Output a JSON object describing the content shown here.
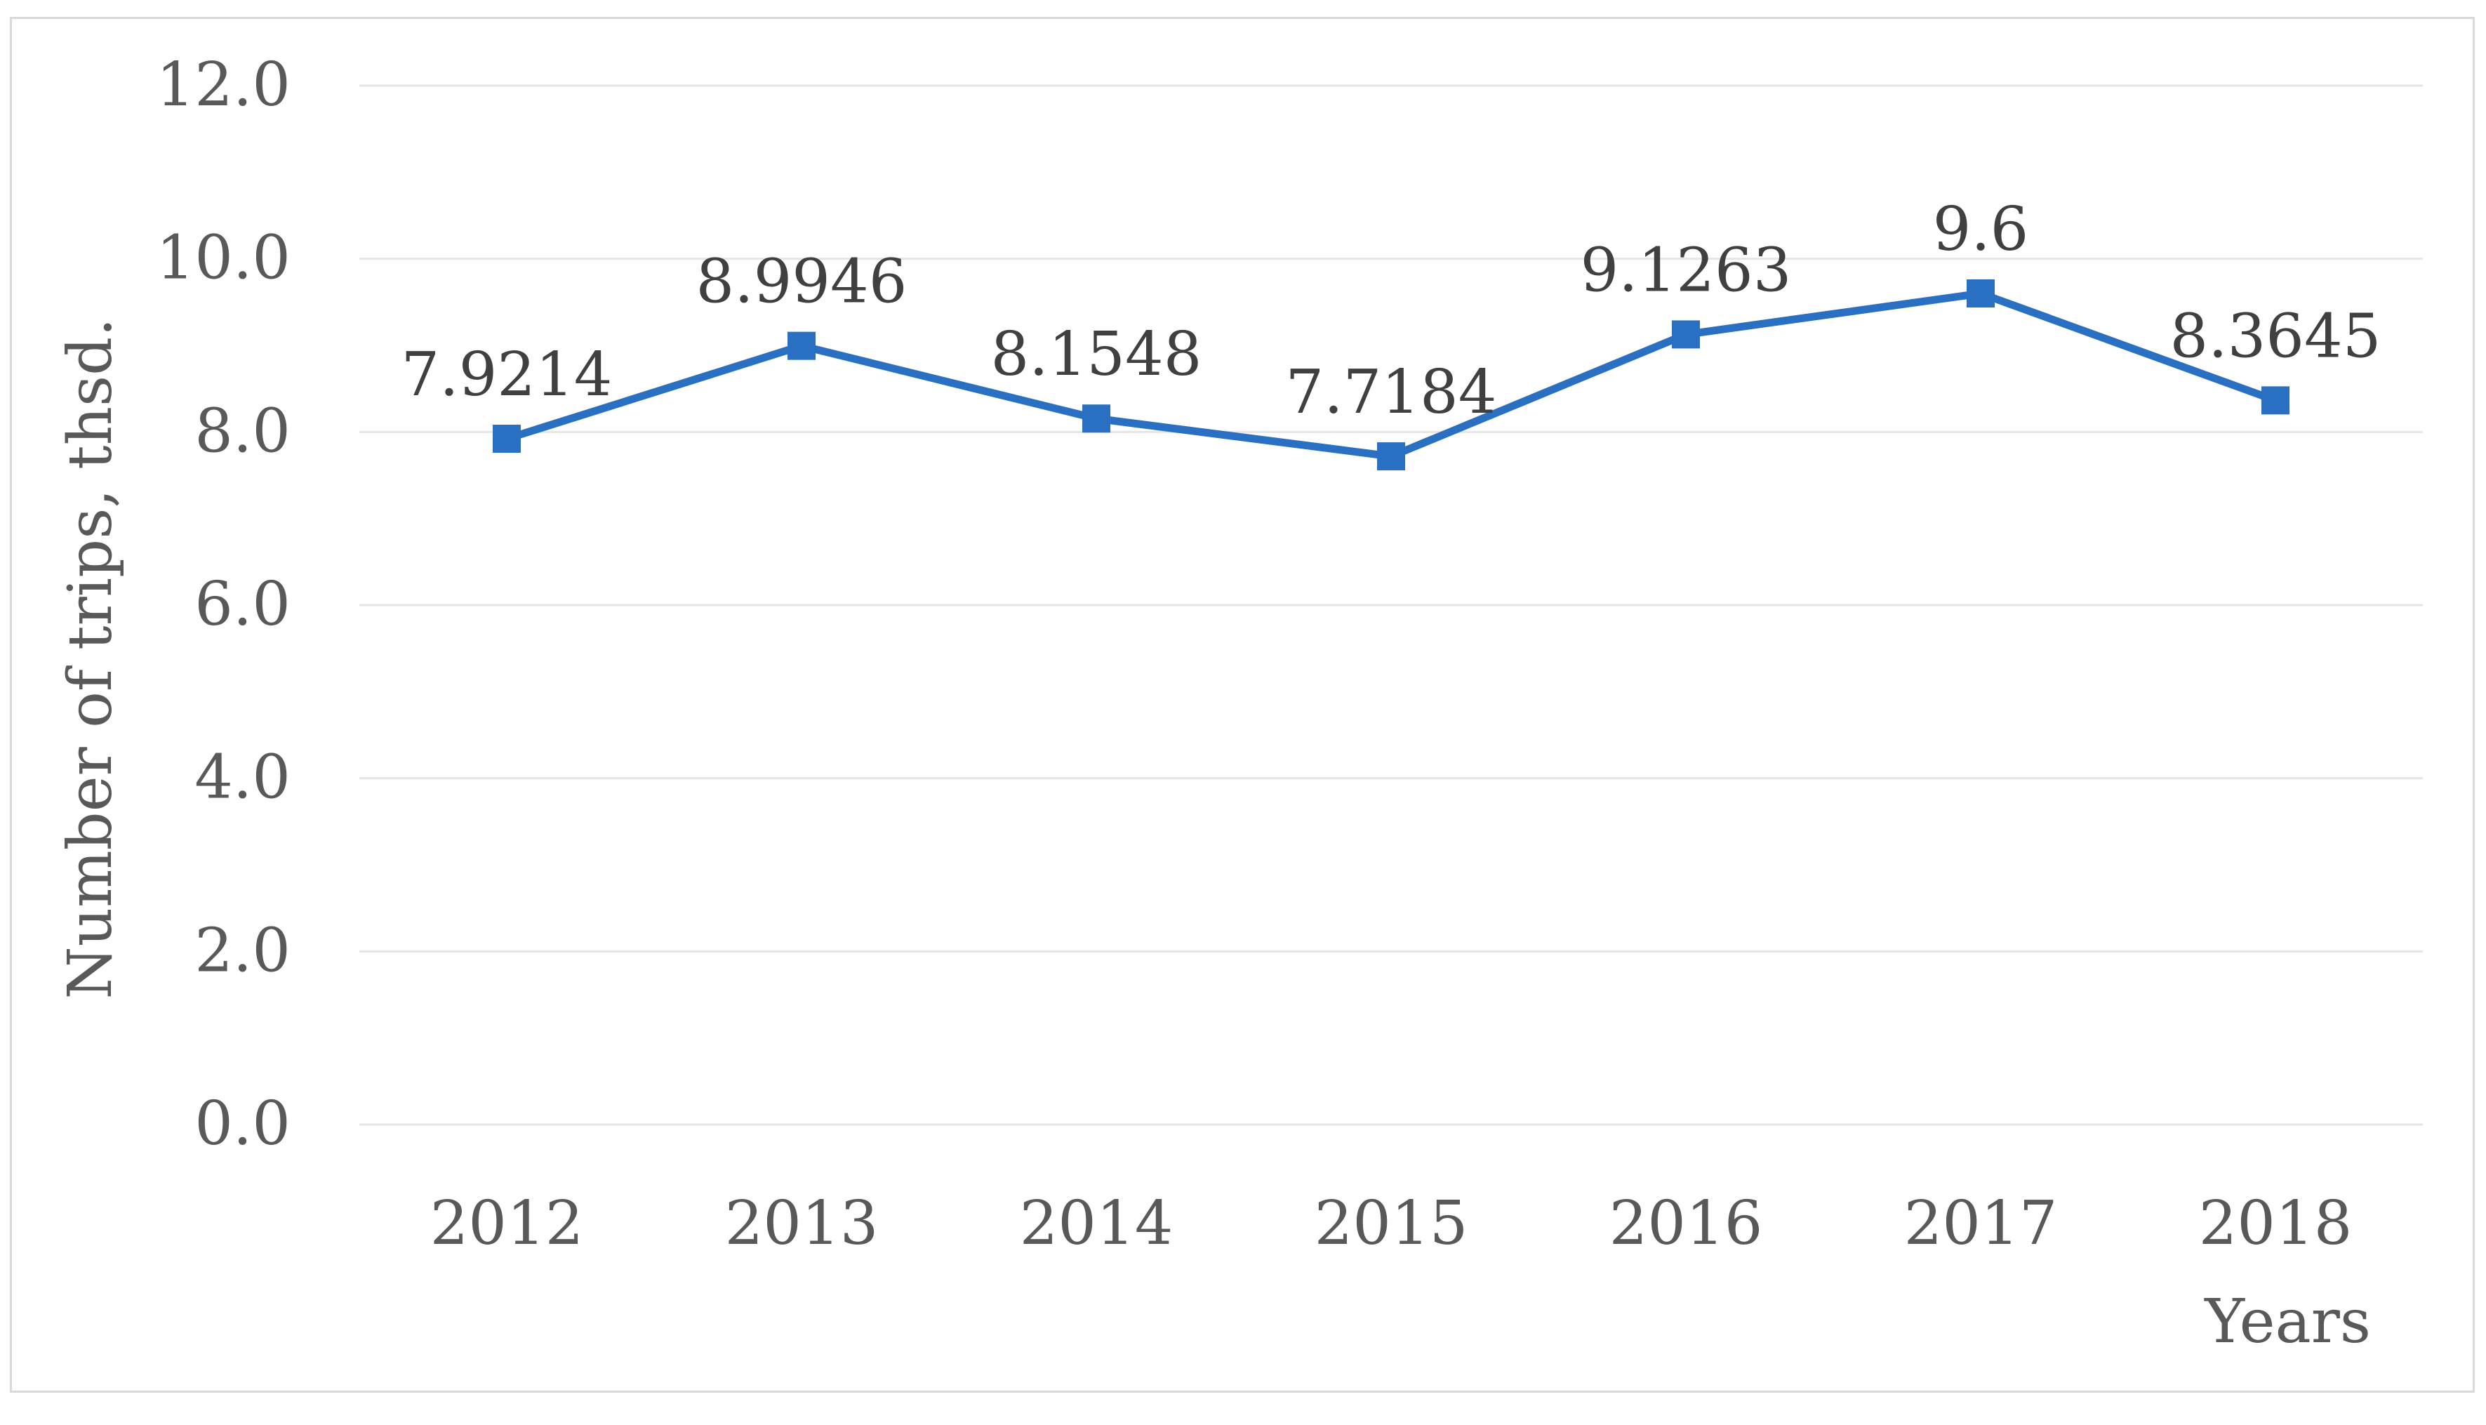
{
  "chart_data": {
    "type": "line",
    "categories": [
      "2012",
      "2013",
      "2014",
      "2015",
      "2016",
      "2017",
      "2018"
    ],
    "series": [
      {
        "values": [
          7.9214,
          8.9946,
          8.1548,
          7.7184,
          9.1263,
          9.6,
          8.3645
        ],
        "color": "#2a70c2"
      }
    ],
    "data_labels": [
      "7.9214",
      "8.9946",
      "8.1548",
      "7.7184",
      "9.1263",
      "9.6",
      "8.3645"
    ],
    "ylabel": "Number of trips, thsd.",
    "xlabel": "Years",
    "ylim": [
      0,
      12
    ],
    "yticks": [
      "0.0",
      "2.0",
      "4.0",
      "6.0",
      "8.0",
      "10.0",
      "12.0"
    ],
    "grid": true,
    "legend": false,
    "marker": "square"
  },
  "colors": {
    "line": "#2a70c2",
    "grid": "#e6e6e6",
    "frame": "#d9d9d9"
  }
}
